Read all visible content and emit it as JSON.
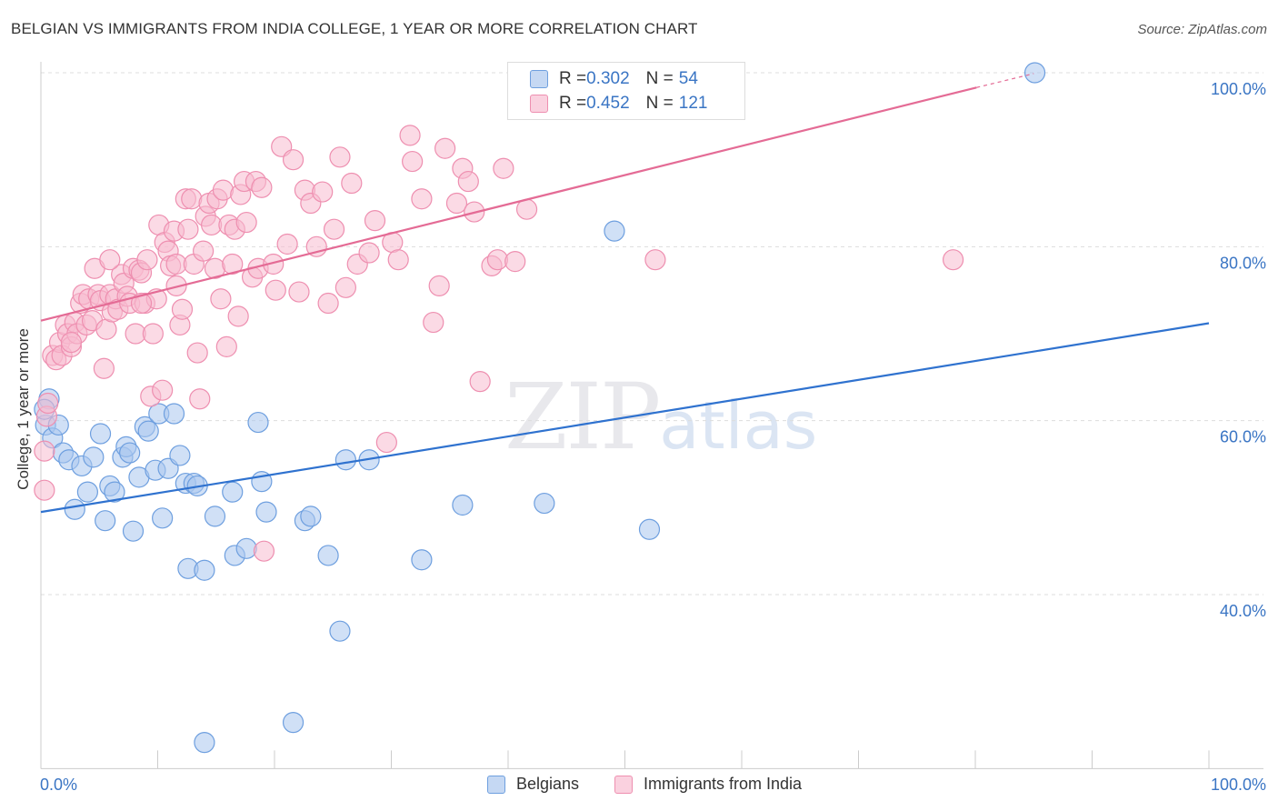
{
  "header": {
    "title": "BELGIAN VS IMMIGRANTS FROM INDIA COLLEGE, 1 YEAR OR MORE CORRELATION CHART",
    "source": "Source: ZipAtlas.com"
  },
  "watermark": {
    "zip": "ZIP",
    "atlas": "atlas"
  },
  "legend": {
    "rows": [
      {
        "r_label": "R = ",
        "r_value": "0.302",
        "n_label": "N = ",
        "n_value": "54"
      },
      {
        "r_label": "R = ",
        "r_value": "0.452",
        "n_label": "N = ",
        "n_value": "121"
      }
    ]
  },
  "bottom_legend": {
    "belgians": "Belgians",
    "india": "Immigrants from India"
  },
  "colors": {
    "belgians_fill": "#a9c6ee",
    "belgians_stroke": "#6e9fdf",
    "belgians_line": "#2f72cf",
    "india_fill": "#f7bcd0",
    "india_stroke": "#ee8fb0",
    "india_line": "#e46b95",
    "tick_label": "#3a75c4",
    "grid": "#dddddd"
  },
  "chart_data": {
    "type": "scatter",
    "title": "BELGIAN VS IMMIGRANTS FROM INDIA COLLEGE, 1 YEAR OR MORE CORRELATION CHART",
    "xlabel": "",
    "ylabel": "College, 1 year or more",
    "xlim": [
      0,
      100
    ],
    "ylim": [
      20,
      102
    ],
    "x_tick_labels": [
      "0.0%",
      "100.0%"
    ],
    "y_ticks": [
      40,
      60,
      80,
      100
    ],
    "y_tick_labels": [
      "40.0%",
      "60.0%",
      "80.0%",
      "100.0%"
    ],
    "grid": true,
    "legend_position": "top-center",
    "series": [
      {
        "name": "Belgians",
        "r": 0.302,
        "n": 54,
        "trend": {
          "x": [
            0,
            100
          ],
          "y": [
            49.5,
            71.2
          ]
        },
        "points": [
          [
            0.4,
            59.5
          ],
          [
            0.7,
            62.5
          ],
          [
            1.0,
            58.0
          ],
          [
            1.5,
            59.5
          ],
          [
            1.9,
            56.3
          ],
          [
            2.4,
            55.5
          ],
          [
            2.9,
            49.8
          ],
          [
            3.5,
            54.8
          ],
          [
            4.0,
            51.8
          ],
          [
            4.5,
            55.8
          ],
          [
            5.1,
            58.5
          ],
          [
            5.5,
            48.5
          ],
          [
            5.9,
            52.5
          ],
          [
            6.3,
            51.8
          ],
          [
            7.0,
            55.8
          ],
          [
            7.3,
            57.0
          ],
          [
            7.6,
            56.3
          ],
          [
            7.9,
            47.3
          ],
          [
            8.4,
            53.5
          ],
          [
            8.9,
            59.3
          ],
          [
            9.2,
            58.8
          ],
          [
            9.8,
            54.3
          ],
          [
            10.1,
            60.8
          ],
          [
            10.4,
            48.8
          ],
          [
            10.9,
            54.5
          ],
          [
            11.4,
            60.8
          ],
          [
            11.9,
            56.0
          ],
          [
            12.4,
            52.8
          ],
          [
            12.6,
            43.0
          ],
          [
            13.1,
            52.8
          ],
          [
            13.4,
            52.5
          ],
          [
            14.0,
            42.8
          ],
          [
            14.0,
            23.0
          ],
          [
            14.9,
            49.0
          ],
          [
            16.4,
            51.8
          ],
          [
            16.6,
            44.5
          ],
          [
            17.6,
            45.3
          ],
          [
            18.6,
            59.8
          ],
          [
            18.9,
            53.0
          ],
          [
            19.3,
            49.5
          ],
          [
            21.6,
            25.3
          ],
          [
            22.6,
            48.5
          ],
          [
            23.1,
            49.0
          ],
          [
            24.6,
            44.5
          ],
          [
            25.6,
            35.8
          ],
          [
            26.1,
            55.5
          ],
          [
            28.1,
            55.5
          ],
          [
            32.6,
            44.0
          ],
          [
            36.1,
            50.3
          ],
          [
            43.1,
            50.5
          ],
          [
            49.1,
            81.8
          ],
          [
            52.1,
            47.5
          ],
          [
            85.1,
            100.0
          ],
          [
            0.3,
            61.3
          ]
        ]
      },
      {
        "name": "Immigrants from India",
        "r": 0.452,
        "n": 121,
        "trend": {
          "x": [
            0,
            80.1
          ],
          "y": [
            71.5,
            98.3
          ]
        },
        "trend_dashed": {
          "x": [
            80.1,
            85.0
          ],
          "y": [
            98.3,
            99.9
          ]
        },
        "points": [
          [
            0.3,
            56.5
          ],
          [
            0.3,
            52.0
          ],
          [
            0.5,
            60.5
          ],
          [
            0.6,
            62.0
          ],
          [
            1.0,
            67.5
          ],
          [
            1.3,
            67.0
          ],
          [
            1.6,
            69.0
          ],
          [
            1.8,
            67.5
          ],
          [
            2.1,
            71.0
          ],
          [
            2.3,
            70.0
          ],
          [
            2.6,
            68.5
          ],
          [
            2.9,
            71.3
          ],
          [
            3.1,
            70.0
          ],
          [
            3.4,
            73.5
          ],
          [
            3.6,
            74.5
          ],
          [
            3.9,
            71.0
          ],
          [
            4.1,
            74.0
          ],
          [
            4.4,
            71.5
          ],
          [
            4.6,
            77.5
          ],
          [
            4.9,
            74.5
          ],
          [
            5.1,
            73.8
          ],
          [
            5.4,
            66.0
          ],
          [
            5.6,
            70.5
          ],
          [
            5.9,
            74.5
          ],
          [
            6.1,
            72.5
          ],
          [
            6.4,
            74.0
          ],
          [
            6.6,
            72.8
          ],
          [
            6.9,
            76.8
          ],
          [
            7.1,
            75.8
          ],
          [
            7.4,
            74.3
          ],
          [
            7.6,
            73.5
          ],
          [
            7.9,
            77.5
          ],
          [
            8.1,
            70.0
          ],
          [
            8.4,
            77.3
          ],
          [
            8.6,
            77.0
          ],
          [
            8.9,
            73.5
          ],
          [
            9.1,
            78.5
          ],
          [
            9.4,
            62.8
          ],
          [
            9.6,
            70.0
          ],
          [
            9.9,
            74.0
          ],
          [
            10.1,
            82.5
          ],
          [
            10.4,
            63.5
          ],
          [
            10.6,
            80.5
          ],
          [
            10.9,
            79.5
          ],
          [
            11.1,
            77.8
          ],
          [
            11.4,
            81.8
          ],
          [
            11.6,
            78.0
          ],
          [
            11.9,
            71.0
          ],
          [
            12.1,
            72.8
          ],
          [
            12.4,
            85.5
          ],
          [
            12.6,
            82.0
          ],
          [
            12.9,
            85.5
          ],
          [
            13.1,
            78.0
          ],
          [
            13.4,
            67.8
          ],
          [
            13.6,
            62.5
          ],
          [
            13.9,
            79.5
          ],
          [
            14.1,
            83.5
          ],
          [
            14.4,
            85.0
          ],
          [
            14.6,
            82.5
          ],
          [
            14.9,
            77.5
          ],
          [
            15.1,
            85.5
          ],
          [
            15.4,
            74.0
          ],
          [
            15.6,
            86.5
          ],
          [
            15.9,
            68.5
          ],
          [
            16.1,
            82.5
          ],
          [
            16.4,
            78.0
          ],
          [
            16.6,
            82.0
          ],
          [
            16.9,
            72.0
          ],
          [
            17.1,
            86.0
          ],
          [
            17.4,
            87.5
          ],
          [
            17.6,
            82.8
          ],
          [
            18.1,
            76.5
          ],
          [
            18.4,
            87.5
          ],
          [
            18.6,
            77.5
          ],
          [
            18.9,
            86.8
          ],
          [
            19.1,
            45.0
          ],
          [
            19.9,
            78.0
          ],
          [
            20.1,
            75.0
          ],
          [
            20.6,
            91.5
          ],
          [
            21.1,
            80.3
          ],
          [
            22.1,
            74.8
          ],
          [
            22.6,
            86.5
          ],
          [
            23.1,
            85.0
          ],
          [
            23.6,
            80.0
          ],
          [
            24.1,
            86.3
          ],
          [
            24.6,
            73.5
          ],
          [
            25.1,
            82.0
          ],
          [
            25.6,
            90.3
          ],
          [
            26.1,
            75.3
          ],
          [
            26.6,
            87.3
          ],
          [
            27.1,
            78.0
          ],
          [
            28.1,
            79.3
          ],
          [
            28.6,
            83.0
          ],
          [
            29.6,
            57.5
          ],
          [
            30.1,
            80.5
          ],
          [
            30.6,
            78.5
          ],
          [
            31.6,
            92.8
          ],
          [
            31.8,
            89.8
          ],
          [
            32.6,
            85.5
          ],
          [
            33.6,
            71.3
          ],
          [
            34.6,
            91.3
          ],
          [
            35.6,
            85.0
          ],
          [
            36.1,
            89.0
          ],
          [
            36.6,
            87.5
          ],
          [
            37.1,
            84.0
          ],
          [
            37.6,
            64.5
          ],
          [
            38.6,
            77.8
          ],
          [
            39.1,
            78.5
          ],
          [
            39.6,
            89.0
          ],
          [
            40.6,
            78.3
          ],
          [
            41.6,
            84.3
          ],
          [
            52.6,
            78.5
          ],
          [
            78.1,
            78.5
          ],
          [
            2.6,
            69.0
          ],
          [
            5.9,
            78.5
          ],
          [
            8.6,
            73.5
          ],
          [
            11.6,
            75.5
          ],
          [
            21.6,
            90.0
          ],
          [
            34.1,
            75.5
          ]
        ]
      }
    ]
  }
}
